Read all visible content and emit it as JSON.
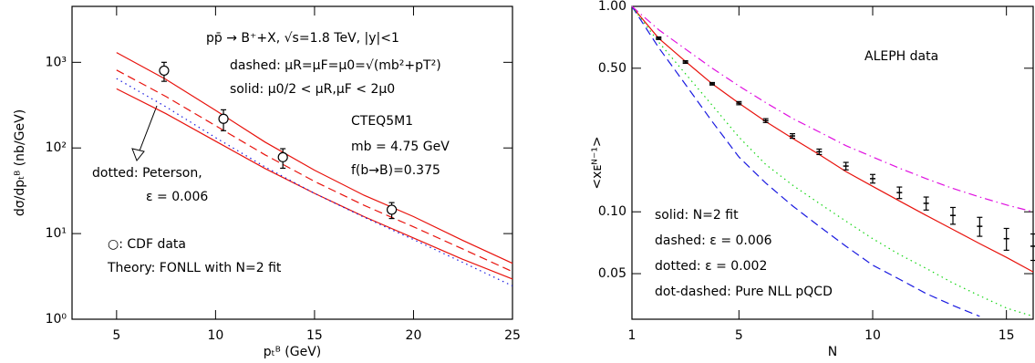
{
  "chart_data": [
    {
      "type": "line",
      "x_label": "pₜᴮ (GeV)",
      "y_label": "dσ/dpₜᴮ (nb/GeV)",
      "xlim": [
        2.75,
        25
      ],
      "xticks": [
        5,
        10,
        15,
        20,
        25
      ],
      "ylim": [
        1,
        4500
      ],
      "ylog": true,
      "yticks": [
        {
          "value": 1,
          "label": "10⁰"
        },
        {
          "value": 10,
          "label": "10¹"
        },
        {
          "value": 100,
          "label": "10²"
        },
        {
          "value": 1000,
          "label": "10³"
        }
      ],
      "series": [
        {
          "style": "solid",
          "color": "#e8120c",
          "x": [
            5,
            7.5,
            10,
            12.5,
            15,
            17.5,
            20,
            22.5,
            25
          ],
          "values": [
            1300,
            631,
            275,
            117,
            55,
            28,
            15.8,
            8.3,
            4.5
          ]
        },
        {
          "style": "solid",
          "color": "#e8120c",
          "x": [
            5,
            7.5,
            10,
            12.5,
            15,
            17.5,
            20,
            22.5,
            25
          ],
          "values": [
            490,
            251,
            120,
            57.5,
            29.5,
            15.8,
            8.9,
            5.0,
            2.95
          ]
        },
        {
          "style": "dashed",
          "color": "#e8120c",
          "x": [
            5,
            7.5,
            10,
            12.5,
            15,
            17.5,
            20,
            22.5,
            25
          ],
          "values": [
            813,
            398,
            182,
            83,
            40.7,
            21.4,
            12.0,
            6.6,
            3.6
          ]
        },
        {
          "style": "dotted",
          "color": "#1a1ae0",
          "x": [
            5,
            7.5,
            10,
            12.5,
            15,
            17.5,
            20,
            22.5,
            25
          ],
          "values": [
            646,
            302,
            132,
            60,
            29.5,
            15.5,
            8.5,
            4.6,
            2.45
          ]
        },
        {
          "style": "errorbar",
          "marker": "circle",
          "color": "#000000",
          "x": [
            7.4,
            10.4,
            13.4,
            18.9
          ],
          "values": [
            800,
            219,
            78,
            19
          ],
          "errors": [
            200,
            60,
            20,
            4
          ]
        }
      ],
      "annotations": [
        {
          "text": "pp̄ → B⁺+X, √s=1.8 TeV, |y|<1",
          "color": "#000000"
        },
        {
          "text": "dashed: μR=μF=μ0=√(mb²+pT²)",
          "color": "#000000"
        },
        {
          "text": "solid: μ0/2 < μR,μF < 2μ0",
          "color": "#000000"
        },
        {
          "text": "CTEQ5M1",
          "color": "#000000"
        },
        {
          "text": "mb = 4.75 GeV",
          "color": "#000000"
        },
        {
          "text": "f(b→B)=0.375",
          "color": "#000000"
        },
        {
          "text": "dotted: Peterson,",
          "color": "#1a1ae0"
        },
        {
          "text": "ε = 0.006",
          "color": "#1a1ae0"
        },
        {
          "text": "○: CDF data",
          "color": "#000000"
        },
        {
          "text": "Theory: FONLL with N=2 fit",
          "color": "#000000"
        }
      ]
    },
    {
      "type": "line",
      "x_label": "N",
      "y_label": "<xᴇᴺ⁻¹>",
      "xlim": [
        1,
        16
      ],
      "xticks": [
        1,
        5,
        10,
        15
      ],
      "ylim": [
        0.03,
        1
      ],
      "ylog": true,
      "yticks": [
        {
          "value": 1,
          "label": "1.00"
        },
        {
          "value": 0.5,
          "label": "0.50"
        },
        {
          "value": 0.1,
          "label": "0.10"
        },
        0.05
      ],
      "series": [
        {
          "name": "solid: N=2 fit",
          "style": "solid",
          "color": "#e8120c",
          "x": [
            1,
            2,
            3,
            4,
            5,
            6,
            7,
            8,
            9,
            10,
            11,
            12,
            13,
            14,
            15,
            16
          ],
          "values": [
            1,
            0.7,
            0.54,
            0.42,
            0.338,
            0.275,
            0.228,
            0.19,
            0.157,
            0.133,
            0.113,
            0.096,
            0.082,
            0.07,
            0.06,
            0.051
          ]
        },
        {
          "name": "dashed: ε = 0.006",
          "style": "dashed",
          "color": "#1a1ae0",
          "x": [
            1,
            2,
            3,
            4,
            5,
            6,
            7,
            8,
            9,
            10,
            11,
            12,
            13,
            14
          ],
          "values": [
            1,
            0.63,
            0.417,
            0.275,
            0.185,
            0.138,
            0.107,
            0.085,
            0.068,
            0.055,
            0.047,
            0.04,
            0.035,
            0.031
          ]
        },
        {
          "name": "dotted: ε = 0.002",
          "style": "dotted",
          "color": "#12d612",
          "x": [
            1,
            2,
            3,
            4,
            5,
            6,
            7,
            8,
            9,
            10,
            11,
            12,
            13,
            14,
            15,
            16
          ],
          "values": [
            1,
            0.67,
            0.47,
            0.33,
            0.231,
            0.17,
            0.135,
            0.11,
            0.09,
            0.074,
            0.062,
            0.053,
            0.045,
            0.039,
            0.034,
            0.031
          ]
        },
        {
          "name": "dot-dashed: Pure NLL pQCD",
          "style": "dashdot",
          "color": "#e010e0",
          "x": [
            1,
            2,
            3,
            4,
            5,
            6,
            7,
            8,
            9,
            10,
            11,
            12,
            13,
            14,
            15,
            16
          ],
          "values": [
            1,
            0.77,
            0.62,
            0.5,
            0.41,
            0.34,
            0.285,
            0.245,
            0.21,
            0.185,
            0.163,
            0.145,
            0.13,
            0.118,
            0.108,
            0.1
          ]
        },
        {
          "name": "ALEPH data",
          "style": "errorbar",
          "marker": "cross",
          "color": "#000000",
          "x": [
            2,
            3,
            4,
            5,
            6,
            7,
            8,
            9,
            10,
            11,
            12,
            13,
            14,
            15,
            16
          ],
          "values": [
            0.7,
            0.536,
            0.42,
            0.338,
            0.278,
            0.234,
            0.196,
            0.167,
            0.145,
            0.124,
            0.11,
            0.096,
            0.085,
            0.074,
            0.068
          ],
          "errors": [
            0.01,
            0.008,
            0.006,
            0.006,
            0.006,
            0.006,
            0.006,
            0.007,
            0.007,
            0.008,
            0.008,
            0.009,
            0.009,
            0.009,
            0.01
          ]
        }
      ]
    }
  ]
}
